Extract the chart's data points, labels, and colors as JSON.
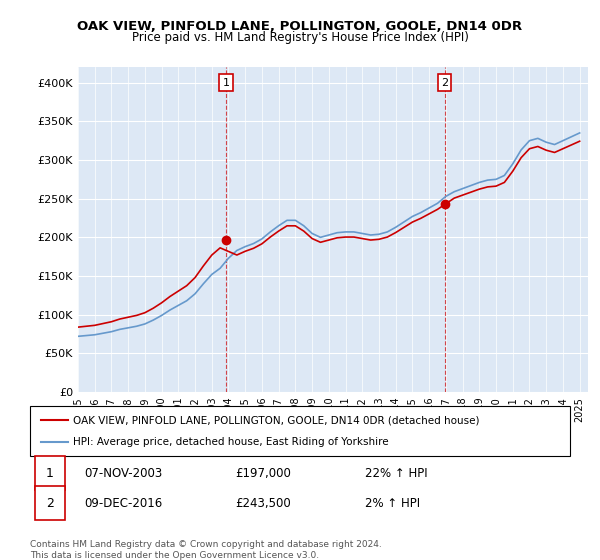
{
  "title": "OAK VIEW, PINFOLD LANE, POLLINGTON, GOOLE, DN14 0DR",
  "subtitle": "Price paid vs. HM Land Registry's House Price Index (HPI)",
  "ylabel_ticks": [
    "£0",
    "£50K",
    "£100K",
    "£150K",
    "£200K",
    "£250K",
    "£300K",
    "£350K",
    "£400K"
  ],
  "ytick_values": [
    0,
    50000,
    100000,
    150000,
    200000,
    250000,
    300000,
    350000,
    400000
  ],
  "ylim": [
    0,
    420000
  ],
  "xlim_start": 1995.0,
  "xlim_end": 2025.5,
  "sale1_x": 2003.85,
  "sale1_y": 197000,
  "sale2_x": 2016.92,
  "sale2_y": 243500,
  "legend_line1": "OAK VIEW, PINFOLD LANE, POLLINGTON, GOOLE, DN14 0DR (detached house)",
  "legend_line2": "HPI: Average price, detached house, East Riding of Yorkshire",
  "table_row1": "1    07-NOV-2003         £197,000        22% ↑ HPI",
  "table_row2": "2    09-DEC-2016         £243,500          2% ↑ HPI",
  "footnote": "Contains HM Land Registry data © Crown copyright and database right 2024.\nThis data is licensed under the Open Government Licence v3.0.",
  "house_color": "#cc0000",
  "hpi_color": "#6699cc",
  "bg_color": "#dde8f5",
  "plot_bg": "#ffffff"
}
